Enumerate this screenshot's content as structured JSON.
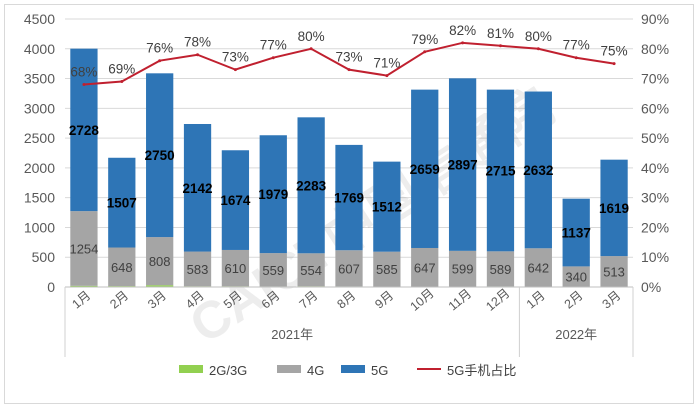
{
  "chart_data": {
    "type": "bar",
    "stacked": true,
    "categories": [
      "1月",
      "2月",
      "3月",
      "4月",
      "5月",
      "6月",
      "7月",
      "8月",
      "9月",
      "10月",
      "11月",
      "12月",
      "1月",
      "2月",
      "3月"
    ],
    "year_groups": [
      {
        "label": "2021年",
        "count": 12
      },
      {
        "label": "2022年",
        "count": 3
      }
    ],
    "series": [
      {
        "name": "2G/3G",
        "color": "#92d050",
        "values": [
          20,
          15,
          30,
          12,
          12,
          10,
          12,
          10,
          8,
          8,
          8,
          10,
          8,
          6,
          6
        ]
      },
      {
        "name": "4G",
        "color": "#a5a5a5",
        "values": [
          1254,
          648,
          808,
          583,
          610,
          559,
          554,
          607,
          585,
          647,
          599,
          589,
          642,
          340,
          513
        ]
      },
      {
        "name": "5G",
        "color": "#2e75b6",
        "values": [
          2728,
          1507,
          2750,
          2142,
          1674,
          1979,
          2283,
          1769,
          1512,
          2659,
          2897,
          2715,
          2632,
          1137,
          1619
        ]
      }
    ],
    "ratio_series": {
      "name": "5G手机占比",
      "color": "#c0202f",
      "axis": "right",
      "values": [
        68,
        69,
        76,
        78,
        73,
        77,
        80,
        73,
        71,
        79,
        82,
        81,
        80,
        77,
        75
      ]
    },
    "y_left": {
      "min": 0,
      "max": 4500,
      "step": 500,
      "ticks": [
        "0",
        "500",
        "1000",
        "1500",
        "2000",
        "2500",
        "3000",
        "3500",
        "4000",
        "4500"
      ]
    },
    "y_right": {
      "min": 0,
      "max": 90,
      "step": 10,
      "ticks": [
        "0%",
        "10%",
        "20%",
        "30%",
        "40%",
        "50%",
        "60%",
        "70%",
        "80%",
        "90%"
      ]
    },
    "grid": true,
    "legend_position": "bottom",
    "watermark": "CAICT中国信通院"
  }
}
